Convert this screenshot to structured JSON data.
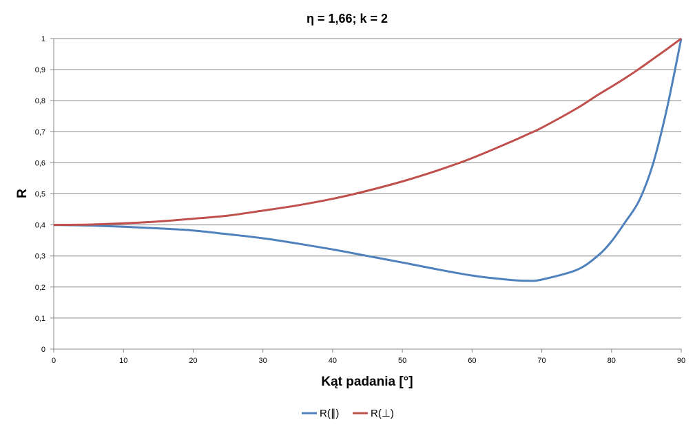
{
  "chart_data": {
    "type": "line",
    "title": "η = 1,66; k = 2",
    "xlabel": "Kąt padania [°]",
    "ylabel": "R",
    "xlim": [
      0,
      90
    ],
    "ylim": [
      0,
      1
    ],
    "x_ticks": [
      "0",
      "10",
      "20",
      "30",
      "40",
      "50",
      "60",
      "70",
      "80",
      "90"
    ],
    "y_ticks": [
      "0",
      "0,1",
      "0,2",
      "0,3",
      "0,4",
      "0,5",
      "0,6",
      "0,7",
      "0,8",
      "0,9",
      "1"
    ],
    "grid": "horizontal",
    "legend_position": "bottom",
    "x": [
      0,
      5,
      10,
      15,
      20,
      25,
      30,
      35,
      40,
      45,
      50,
      55,
      60,
      65,
      68,
      70,
      75,
      78,
      80,
      82,
      84,
      86,
      88,
      90
    ],
    "series": [
      {
        "name": "R(∥)",
        "color": "#4F81BD",
        "values": [
          0.4,
          0.398,
          0.394,
          0.389,
          0.382,
          0.37,
          0.357,
          0.34,
          0.321,
          0.3,
          0.279,
          0.257,
          0.237,
          0.224,
          0.22,
          0.224,
          0.255,
          0.3,
          0.347,
          0.41,
          0.48,
          0.6,
          0.78,
          1.0
        ]
      },
      {
        "name": "R(⊥)",
        "color": "#C0504D",
        "values": [
          0.4,
          0.401,
          0.405,
          0.411,
          0.42,
          0.43,
          0.446,
          0.463,
          0.484,
          0.51,
          0.54,
          0.575,
          0.615,
          0.662,
          0.692,
          0.713,
          0.775,
          0.818,
          0.845,
          0.873,
          0.903,
          0.935,
          0.967,
          1.0
        ]
      }
    ]
  }
}
